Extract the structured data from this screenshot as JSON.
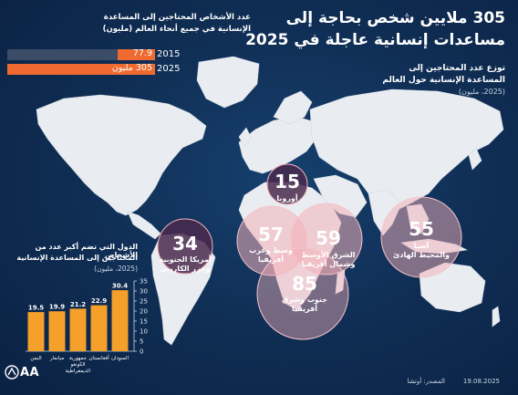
{
  "header": {
    "title_line1": "305 ملايين شخص بحاجة إلى",
    "title_line2": "مساعدات إنسانية عاجلة في 2025",
    "subtitle_line1": "توزع عدد المحتاجين إلى",
    "subtitle_line2": "المساعدة الإنسانية حول العالم",
    "subtitle_unit": "(2025، مليون)"
  },
  "total_panel": {
    "title_line1": "عدد الأشخاص المحتاجين إلى المساعدة",
    "title_line2": "الإنسانية في جميع أنحاء العالم (مليون)",
    "max": 305,
    "rows": [
      {
        "year": "2015",
        "value": 77.9,
        "label": "77.9"
      },
      {
        "year": "2025",
        "value": 305,
        "label": "305 مليون"
      }
    ]
  },
  "chart_data": [
    {
      "type": "bar",
      "title": "الدول التي تضم أكبر عدد من الأشخاص المحتاجين إلى المساعدة الإنسانية (2025، مليون)",
      "title_line1": "الدول التي تضم أكبر عدد من الأشخاص",
      "title_line2": "المحتاجين إلى المساعدة الإنسانية",
      "title_unit": "(2025، مليون)",
      "categories": [
        "اليمن",
        "ميانمار",
        "جمهورية الكونغو الديمقراطية",
        "أفغانستان",
        "السودان"
      ],
      "category_lines": [
        [
          "اليمن"
        ],
        [
          "ميانمار"
        ],
        [
          "جمهورية",
          "الكونغو",
          "الديمقراطية"
        ],
        [
          "أفغانستان"
        ],
        [
          "السودان"
        ]
      ],
      "values": [
        19.5,
        19.9,
        21.2,
        22.9,
        30.4
      ],
      "value_labels": [
        "19.5",
        "19.9",
        "21.2",
        "22.9",
        "30.4"
      ],
      "ylim": [
        0,
        35
      ],
      "yticks": [
        0,
        5,
        10,
        15,
        20,
        25,
        30,
        35
      ],
      "color": "#f5a02a"
    },
    {
      "type": "bubble-map",
      "regions": [
        {
          "value": 15,
          "name": "أوروبا",
          "name_lines": [
            "أوروبا"
          ]
        },
        {
          "value": 34,
          "name": "أمريكا الجنوبية وجزر الكاريبي",
          "name_lines": [
            "أمريكا الجنوبية",
            "وجزر الكاريبي"
          ]
        },
        {
          "value": 57,
          "name": "وسط وغرب أفريقيا",
          "name_lines": [
            "وسط وغرب",
            "أفريقيا"
          ]
        },
        {
          "value": 59,
          "name": "الشرق الأوسط وشمال أفريقيا",
          "name_lines": [
            "الشرق الأوسط",
            "وشمال أفريقيا"
          ]
        },
        {
          "value": 85,
          "name": "جنوب وشرق أفريقيا",
          "name_lines": [
            "جنوب وشرق",
            "أفريقيا"
          ]
        },
        {
          "value": 55,
          "name": "آسيا والمحيط الهادئ",
          "name_lines": [
            "آسيا",
            "والمحيط الهادئ"
          ]
        }
      ]
    }
  ],
  "footer": {
    "source": "المصدر: أوتشا",
    "date": "19.08.2025",
    "logo_text": "AA"
  },
  "colors": {
    "background": "#0f2c52",
    "land": "#e9edf2",
    "bar_orange": "#ef6a30",
    "bar_track": "#3b4d66",
    "country_bar": "#f5a02a",
    "bubble_fill": "#f3b0b8",
    "bubble_dark": "#4a2a4e"
  }
}
